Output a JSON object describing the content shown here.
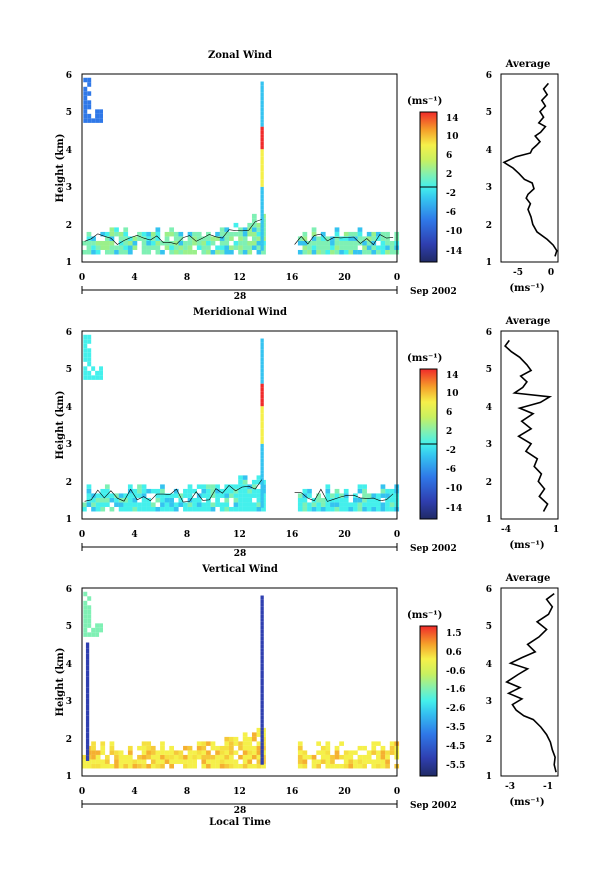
{
  "chart_data": [
    {
      "type": "heatmap",
      "title": "Zonal Wind",
      "ylabel": "Height (km)",
      "xlabel": "",
      "x_ticks": [
        "0",
        "4",
        "8",
        "12",
        "16",
        "20",
        "0"
      ],
      "xlim": [
        0,
        24
      ],
      "y_ticks": [
        "1",
        "2",
        "3",
        "4",
        "5",
        "6"
      ],
      "ylim": [
        1,
        6
      ],
      "date_labels": {
        "day": "28",
        "month": "Sep 2002"
      },
      "colorbar": {
        "unit": "(ms⁻¹)",
        "ticks": [
          "14",
          "10",
          "6",
          "2",
          "-2",
          "-6",
          "-10",
          "-14"
        ],
        "range": [
          -14,
          14
        ]
      },
      "average": {
        "title": "Average",
        "x_ticks": [
          "-5",
          "0"
        ],
        "xlim": [
          -8.5,
          1
        ],
        "y_ticks": [
          "1",
          "2",
          "3",
          "4",
          "5",
          "6"
        ],
        "xlabel": "(ms⁻¹)",
        "profile": [
          [
            1.15,
            0.5
          ],
          [
            1.3,
            0.8
          ],
          [
            1.45,
            0.2
          ],
          [
            1.6,
            -0.8
          ],
          [
            1.8,
            -2.5
          ],
          [
            2.0,
            -3.2
          ],
          [
            2.2,
            -3.5
          ],
          [
            2.4,
            -4.0
          ],
          [
            2.55,
            -3.6
          ],
          [
            2.7,
            -4.3
          ],
          [
            2.8,
            -4.0
          ],
          [
            2.95,
            -3.0
          ],
          [
            3.1,
            -3.3
          ],
          [
            3.2,
            -4.6
          ],
          [
            3.35,
            -5.5
          ],
          [
            3.5,
            -6.5
          ],
          [
            3.65,
            -8.0
          ],
          [
            3.8,
            -6.0
          ],
          [
            3.9,
            -3.6
          ],
          [
            4.0,
            -3.3
          ],
          [
            4.1,
            -2.6
          ],
          [
            4.2,
            -2.0
          ],
          [
            4.35,
            -2.8
          ],
          [
            4.45,
            -1.9
          ],
          [
            4.6,
            -1.1
          ],
          [
            4.7,
            -2.2
          ],
          [
            4.85,
            -1.4
          ],
          [
            5.0,
            -2.0
          ],
          [
            5.15,
            -1.1
          ],
          [
            5.3,
            -1.7
          ],
          [
            5.45,
            -0.8
          ],
          [
            5.6,
            -1.4
          ],
          [
            5.75,
            -0.6
          ]
        ]
      },
      "colors": {
        "base": "#7ff0b4",
        "grid": "#000000"
      }
    },
    {
      "type": "heatmap",
      "title": "Meridional Wind",
      "ylabel": "Height (km)",
      "xlabel": "",
      "x_ticks": [
        "0",
        "4",
        "8",
        "12",
        "16",
        "20",
        "0"
      ],
      "xlim": [
        0,
        24
      ],
      "y_ticks": [
        "1",
        "2",
        "3",
        "4",
        "5",
        "6"
      ],
      "ylim": [
        1,
        6
      ],
      "date_labels": {
        "day": "28",
        "month": "Sep 2002"
      },
      "colorbar": {
        "unit": "(ms⁻¹)",
        "ticks": [
          "14",
          "10",
          "6",
          "2",
          "-2",
          "-6",
          "-10",
          "-14"
        ],
        "range": [
          -14,
          14
        ]
      },
      "average": {
        "title": "Average",
        "x_ticks": [
          "-4",
          "1"
        ],
        "xlim": [
          -4.5,
          1
        ],
        "y_ticks": [
          "1",
          "2",
          "3",
          "4",
          "5",
          "6"
        ],
        "xlabel": "(ms⁻¹)",
        "profile": [
          [
            1.2,
            -0.4
          ],
          [
            1.4,
            0.0
          ],
          [
            1.6,
            -0.8
          ],
          [
            1.8,
            -0.3
          ],
          [
            2.0,
            -0.9
          ],
          [
            2.2,
            -0.6
          ],
          [
            2.4,
            -1.3
          ],
          [
            2.6,
            -1.0
          ],
          [
            2.8,
            -2.1
          ],
          [
            3.0,
            -1.6
          ],
          [
            3.2,
            -2.8
          ],
          [
            3.4,
            -1.6
          ],
          [
            3.6,
            -2.5
          ],
          [
            3.8,
            -1.4
          ],
          [
            3.95,
            -2.7
          ],
          [
            4.1,
            -0.7
          ],
          [
            4.25,
            0.2
          ],
          [
            4.35,
            -3.2
          ],
          [
            4.5,
            -2.4
          ],
          [
            4.65,
            -2.0
          ],
          [
            4.8,
            -2.6
          ],
          [
            4.95,
            -1.6
          ],
          [
            5.1,
            -2.0
          ],
          [
            5.3,
            -2.7
          ],
          [
            5.45,
            -3.5
          ],
          [
            5.6,
            -4.1
          ],
          [
            5.75,
            -3.7
          ]
        ]
      },
      "colors": {
        "base": "#44f0ec",
        "grid": "#000000"
      }
    },
    {
      "type": "heatmap",
      "title": "Vertical Wind",
      "ylabel": "Height (km)",
      "xlabel": "Local Time",
      "x_ticks": [
        "0",
        "4",
        "8",
        "12",
        "16",
        "20",
        "0"
      ],
      "xlim": [
        0,
        24
      ],
      "y_ticks": [
        "1",
        "2",
        "3",
        "4",
        "5",
        "6"
      ],
      "ylim": [
        1,
        6
      ],
      "date_labels": {
        "day": "28",
        "month": "Sep 2002"
      },
      "colorbar": {
        "unit": "(ms⁻¹)",
        "ticks": [
          "1.5",
          "0.6",
          "-0.6",
          "-1.6",
          "-2.6",
          "-3.5",
          "-4.5",
          "-5.5"
        ],
        "range": [
          -6,
          2
        ]
      },
      "average": {
        "title": "Average",
        "x_ticks": [
          "-3",
          "-1"
        ],
        "xlim": [
          -3.6,
          -0.6
        ],
        "y_ticks": [
          "1",
          "2",
          "3",
          "4",
          "5",
          "6"
        ],
        "xlabel": "(ms⁻¹)",
        "profile": [
          [
            1.1,
            -0.7
          ],
          [
            1.3,
            -0.8
          ],
          [
            1.5,
            -0.75
          ],
          [
            1.7,
            -0.9
          ],
          [
            1.9,
            -1.0
          ],
          [
            2.1,
            -1.2
          ],
          [
            2.3,
            -1.5
          ],
          [
            2.5,
            -1.9
          ],
          [
            2.6,
            -2.4
          ],
          [
            2.75,
            -2.8
          ],
          [
            2.9,
            -3.0
          ],
          [
            3.05,
            -2.5
          ],
          [
            3.2,
            -3.2
          ],
          [
            3.35,
            -2.6
          ],
          [
            3.5,
            -3.3
          ],
          [
            3.7,
            -2.7
          ],
          [
            3.85,
            -2.2
          ],
          [
            4.0,
            -3.1
          ],
          [
            4.15,
            -2.5
          ],
          [
            4.3,
            -1.8
          ],
          [
            4.5,
            -2.2
          ],
          [
            4.7,
            -1.6
          ],
          [
            4.9,
            -1.2
          ],
          [
            5.1,
            -1.7
          ],
          [
            5.3,
            -1.1
          ],
          [
            5.5,
            -0.9
          ],
          [
            5.7,
            -1.2
          ],
          [
            5.85,
            -0.8
          ]
        ]
      },
      "colors": {
        "base": "#f5f04a",
        "grid": "#000000"
      }
    }
  ]
}
